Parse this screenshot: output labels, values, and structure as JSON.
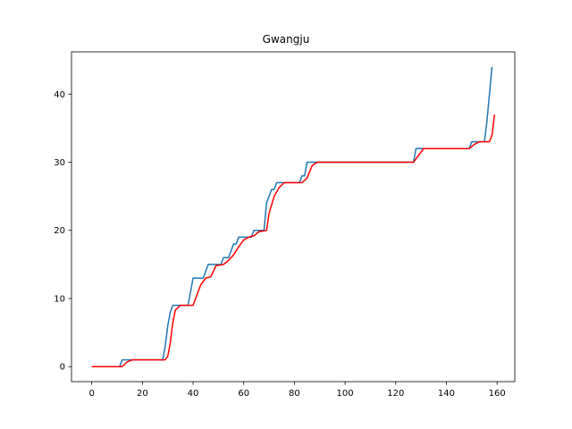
{
  "chart_data": {
    "type": "line",
    "title": "Gwangju",
    "xlabel": "",
    "ylabel": "",
    "xlim": [
      -8,
      167
    ],
    "ylim": [
      -2.2,
      46.2
    ],
    "xticks": [
      0,
      20,
      40,
      60,
      80,
      100,
      120,
      140,
      160
    ],
    "yticks": [
      0,
      10,
      20,
      30,
      40
    ],
    "grid": false,
    "legend": "none",
    "series": [
      {
        "color": "#1f77b4",
        "points": [
          [
            0,
            0
          ],
          [
            11,
            0
          ],
          [
            12,
            1
          ],
          [
            28,
            1
          ],
          [
            29,
            3
          ],
          [
            30,
            6
          ],
          [
            31,
            8
          ],
          [
            32,
            9
          ],
          [
            38,
            9
          ],
          [
            40,
            13
          ],
          [
            44,
            13
          ],
          [
            46,
            15
          ],
          [
            51,
            15
          ],
          [
            52,
            16
          ],
          [
            54,
            16
          ],
          [
            55,
            17
          ],
          [
            56,
            18
          ],
          [
            57,
            18
          ],
          [
            58,
            19
          ],
          [
            63,
            19
          ],
          [
            64,
            20
          ],
          [
            68,
            20
          ],
          [
            69,
            24
          ],
          [
            70,
            25
          ],
          [
            71,
            26
          ],
          [
            72,
            26
          ],
          [
            73,
            27
          ],
          [
            82,
            27
          ],
          [
            83,
            28
          ],
          [
            84,
            28
          ],
          [
            85,
            30
          ],
          [
            127,
            30
          ],
          [
            128,
            32
          ],
          [
            149,
            32
          ],
          [
            150,
            33
          ],
          [
            155,
            33
          ],
          [
            156,
            36
          ],
          [
            157,
            40
          ],
          [
            158,
            44
          ]
        ]
      },
      {
        "color": "#ff0000",
        "points": [
          [
            0,
            0
          ],
          [
            12,
            0
          ],
          [
            14,
            0.7
          ],
          [
            16,
            1
          ],
          [
            29,
            1
          ],
          [
            30,
            1.5
          ],
          [
            31,
            3.5
          ],
          [
            32,
            6.5
          ],
          [
            33,
            8.3
          ],
          [
            35,
            9
          ],
          [
            40,
            9
          ],
          [
            41,
            10
          ],
          [
            43,
            12
          ],
          [
            45,
            13
          ],
          [
            47,
            13.2
          ],
          [
            49,
            14.8
          ],
          [
            52,
            15
          ],
          [
            54,
            15.6
          ],
          [
            56,
            16.4
          ],
          [
            58,
            17.6
          ],
          [
            60,
            18.6
          ],
          [
            62,
            19
          ],
          [
            64,
            19.2
          ],
          [
            66,
            19.8
          ],
          [
            69,
            20
          ],
          [
            70,
            22.5
          ],
          [
            72,
            25
          ],
          [
            74,
            26.3
          ],
          [
            76,
            27
          ],
          [
            83,
            27
          ],
          [
            85,
            27.7
          ],
          [
            87,
            29.5
          ],
          [
            89,
            30
          ],
          [
            127,
            30
          ],
          [
            129,
            31
          ],
          [
            131,
            32
          ],
          [
            149,
            32
          ],
          [
            151,
            32.6
          ],
          [
            153,
            33
          ],
          [
            157,
            33
          ],
          [
            158,
            34
          ],
          [
            159,
            37
          ]
        ]
      }
    ]
  }
}
